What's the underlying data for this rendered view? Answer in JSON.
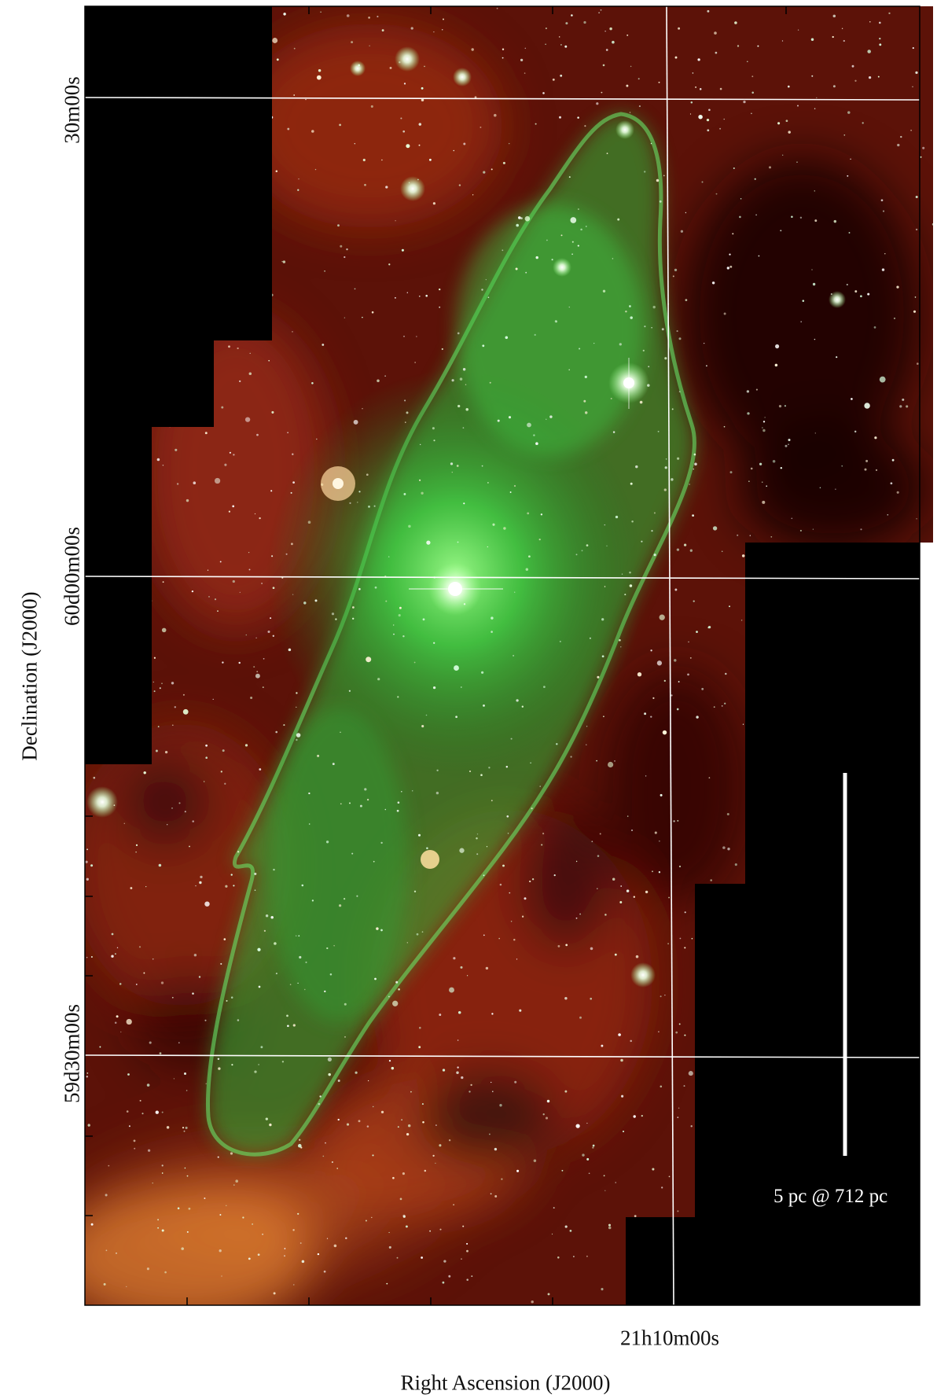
{
  "axes": {
    "x_title": "Right Ascension (J2000)",
    "y_title": "Declination (J2000)",
    "x_ticks": [
      "21h10m00s"
    ],
    "y_ticks": [
      "30m00s",
      "60d00m00s",
      "59d30m00s"
    ]
  },
  "scale_bar": {
    "label": "5 pc @ 712 pc"
  },
  "colors": {
    "background": "#000000",
    "dust_emission": "#8a1e10",
    "bubble_emission": "#3fd04a",
    "grid_lines": "#ffffff",
    "stars": "#f4fff0"
  }
}
